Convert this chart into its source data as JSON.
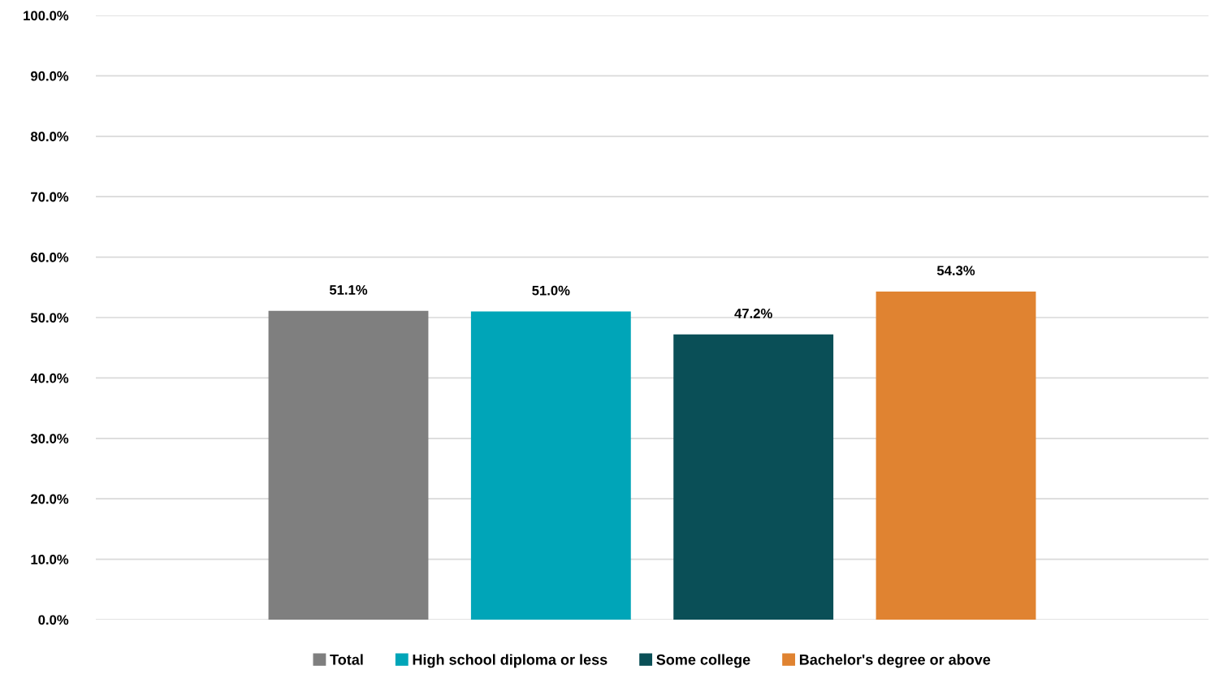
{
  "chart_data": {
    "type": "bar",
    "categories": [
      null
    ],
    "series": [
      {
        "name": "Total",
        "color": "#7f7f7f",
        "values": [
          51.1
        ],
        "value_labels": [
          "51.1%"
        ]
      },
      {
        "name": "High school diploma or less",
        "color": "#00a5b8",
        "values": [
          51.0
        ],
        "value_labels": [
          "51.0%"
        ]
      },
      {
        "name": "Some college",
        "color": "#0a4f57",
        "values": [
          47.2
        ],
        "value_labels": [
          "47.2%"
        ]
      },
      {
        "name": "Bachelor's degree or above",
        "color": "#e08331",
        "values": [
          54.3
        ],
        "value_labels": [
          "54.3%"
        ]
      }
    ],
    "ylim": [
      0,
      100
    ],
    "yticks": [
      {
        "value": 0,
        "label": "0.0%"
      },
      {
        "value": 10,
        "label": "10.0%"
      },
      {
        "value": 20,
        "label": "20.0%"
      },
      {
        "value": 30,
        "label": "30.0%"
      },
      {
        "value": 40,
        "label": "40.0%"
      },
      {
        "value": 50,
        "label": "50.0%"
      },
      {
        "value": 60,
        "label": "60.0%"
      },
      {
        "value": 70,
        "label": "70.0%"
      },
      {
        "value": 80,
        "label": "80.0%"
      },
      {
        "value": 90,
        "label": "90.0%"
      },
      {
        "value": 100,
        "label": "100.0%"
      }
    ],
    "grid": "y",
    "legend": "bottom"
  }
}
